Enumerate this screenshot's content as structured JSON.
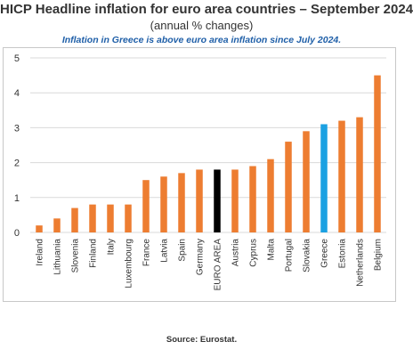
{
  "title": "HICP Headline inflation for euro area countries – September 2024",
  "subtitle": "(annual % changes)",
  "note": "Inflation in Greece is above euro area inflation since July 2024.",
  "source": "Source: Eurostat.",
  "colors": {
    "default_bar": "#ed7d31",
    "euro_area_bar": "#000000",
    "greece_bar": "#1ba1e2",
    "grid": "#d9d9d9",
    "axis_text": "#333333"
  },
  "chart_data": {
    "type": "bar",
    "title": "HICP Headline inflation for euro area countries – September 2024",
    "subtitle": "(annual % changes)",
    "xlabel": "",
    "ylabel": "",
    "ylim": [
      0,
      5
    ],
    "yticks": [
      0,
      1,
      2,
      3,
      4,
      5
    ],
    "grid": true,
    "legend": "none",
    "categories": [
      "Ireland",
      "Lithuania",
      "Slovenia",
      "Finland",
      "Italy",
      "Luxembourg",
      "France",
      "Latvia",
      "Spain",
      "Germany",
      "EURO AREA",
      "Austria",
      "Cyprus",
      "Malta",
      "Portugal",
      "Slovakia",
      "Greece",
      "Estonia",
      "Netherlands",
      "Belgium"
    ],
    "values": [
      0.2,
      0.4,
      0.7,
      0.8,
      0.8,
      0.8,
      1.5,
      1.6,
      1.7,
      1.8,
      1.8,
      1.8,
      1.9,
      2.1,
      2.6,
      2.9,
      3.1,
      3.2,
      3.3,
      4.5
    ],
    "highlight": {
      "EURO AREA": "#000000",
      "Greece": "#1ba1e2"
    }
  }
}
